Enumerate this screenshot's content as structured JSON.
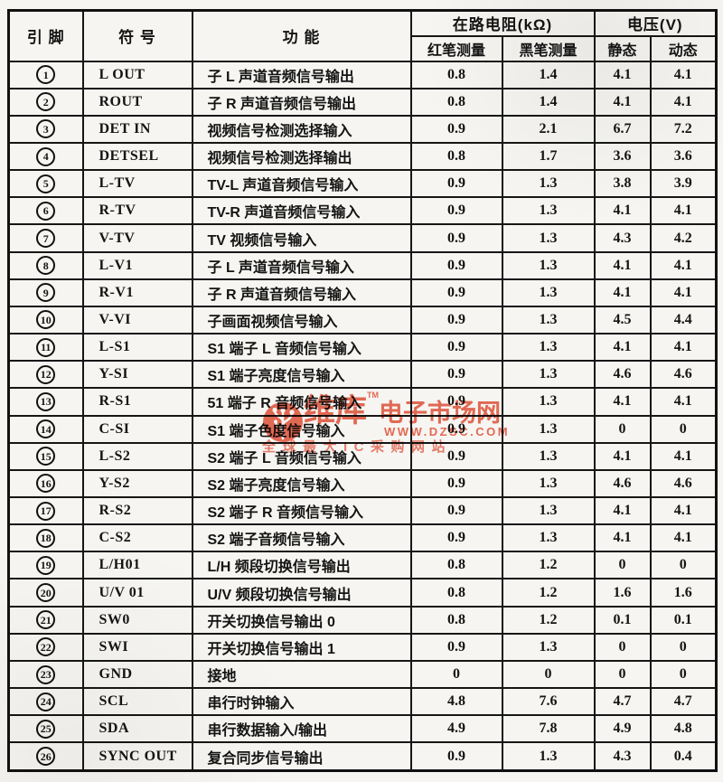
{
  "table": {
    "headers": {
      "pin": "引 脚",
      "symbol": "符 号",
      "function": "功 能",
      "resistance_group": "在路电阻(kΩ)",
      "voltage_group": "电压(V)",
      "red_pen": "红笔测量",
      "black_pen": "黑笔测量",
      "static": "静态",
      "dynamic": "动态"
    },
    "rows": [
      {
        "pin": "1",
        "symbol": "L OUT",
        "function": "子 L 声道音频信号输出",
        "red": "0.8",
        "black": "1.4",
        "static": "4.1",
        "dynamic": "4.1"
      },
      {
        "pin": "2",
        "symbol": "ROUT",
        "function": "子 R 声道音频信号输出",
        "red": "0.8",
        "black": "1.4",
        "static": "4.1",
        "dynamic": "4.1"
      },
      {
        "pin": "3",
        "symbol": "DET IN",
        "function": "视频信号检测选择输入",
        "red": "0.9",
        "black": "2.1",
        "static": "6.7",
        "dynamic": "7.2"
      },
      {
        "pin": "4",
        "symbol": "DETSEL",
        "function": "视频信号检测选择输出",
        "red": "0.8",
        "black": "1.7",
        "static": "3.6",
        "dynamic": "3.6"
      },
      {
        "pin": "5",
        "symbol": "L-TV",
        "function": "TV-L 声道音频信号输入",
        "red": "0.9",
        "black": "1.3",
        "static": "3.8",
        "dynamic": "3.9"
      },
      {
        "pin": "6",
        "symbol": "R-TV",
        "function": "TV-R 声道音频信号输入",
        "red": "0.9",
        "black": "1.3",
        "static": "4.1",
        "dynamic": "4.1"
      },
      {
        "pin": "7",
        "symbol": "V-TV",
        "function": "TV 视频信号输入",
        "red": "0.9",
        "black": "1.3",
        "static": "4.3",
        "dynamic": "4.2"
      },
      {
        "pin": "8",
        "symbol": "L-V1",
        "function": "子 L 声道音频信号输入",
        "red": "0.9",
        "black": "1.3",
        "static": "4.1",
        "dynamic": "4.1"
      },
      {
        "pin": "9",
        "symbol": "R-V1",
        "function": "子 R 声道音频信号输入",
        "red": "0.9",
        "black": "1.3",
        "static": "4.1",
        "dynamic": "4.1"
      },
      {
        "pin": "10",
        "symbol": "V-VI",
        "function": "子画面视频信号输入",
        "red": "0.9",
        "black": "1.3",
        "static": "4.5",
        "dynamic": "4.4"
      },
      {
        "pin": "11",
        "symbol": "L-S1",
        "function": "S1 端子 L 音频信号输入",
        "red": "0.9",
        "black": "1.3",
        "static": "4.1",
        "dynamic": "4.1"
      },
      {
        "pin": "12",
        "symbol": "Y-SI",
        "function": "S1 端子亮度信号输入",
        "red": "0.9",
        "black": "1.3",
        "static": "4.6",
        "dynamic": "4.6"
      },
      {
        "pin": "13",
        "symbol": "R-S1",
        "function": "51 端子 R 音频信号输入",
        "red": "0.9",
        "black": "1.3",
        "static": "4.1",
        "dynamic": "4.1"
      },
      {
        "pin": "14",
        "symbol": "C-SI",
        "function": "S1 端子色度信号输入",
        "red": "0.9",
        "black": "1.3",
        "static": "0",
        "dynamic": "0"
      },
      {
        "pin": "15",
        "symbol": "L-S2",
        "function": "S2 端子 L 音频信号输入",
        "red": "0.9",
        "black": "1.3",
        "static": "4.1",
        "dynamic": "4.1"
      },
      {
        "pin": "16",
        "symbol": "Y-S2",
        "function": "S2 端子亮度信号输入",
        "red": "0.9",
        "black": "1.3",
        "static": "4.6",
        "dynamic": "4.6"
      },
      {
        "pin": "17",
        "symbol": "R-S2",
        "function": "S2 端子 R 音频信号输入",
        "red": "0.9",
        "black": "1.3",
        "static": "4.1",
        "dynamic": "4.1"
      },
      {
        "pin": "18",
        "symbol": "C-S2",
        "function": "S2 端子音频信号输入",
        "red": "0.9",
        "black": "1.3",
        "static": "4.1",
        "dynamic": "4.1"
      },
      {
        "pin": "19",
        "symbol": "L/H01",
        "function": "L/H 频段切换信号输出",
        "red": "0.8",
        "black": "1.2",
        "static": "0",
        "dynamic": "0"
      },
      {
        "pin": "20",
        "symbol": "U/V 01",
        "function": "U/V 频段切换信号输出",
        "red": "0.8",
        "black": "1.2",
        "static": "1.6",
        "dynamic": "1.6"
      },
      {
        "pin": "21",
        "symbol": "SW0",
        "function": "开关切换信号输出 0",
        "red": "0.8",
        "black": "1.2",
        "static": "0.1",
        "dynamic": "0.1"
      },
      {
        "pin": "22",
        "symbol": "SWI",
        "function": "开关切换信号输出 1",
        "red": "0.9",
        "black": "1.3",
        "static": "0",
        "dynamic": "0"
      },
      {
        "pin": "23",
        "symbol": "GND",
        "function": "接地",
        "red": "0",
        "black": "0",
        "static": "0",
        "dynamic": "0"
      },
      {
        "pin": "24",
        "symbol": "SCL",
        "function": "串行时钟输入",
        "red": "4.8",
        "black": "7.6",
        "static": "4.7",
        "dynamic": "4.7"
      },
      {
        "pin": "25",
        "symbol": "SDA",
        "function": "串行数据输入/输出",
        "red": "4.9",
        "black": "7.8",
        "static": "4.9",
        "dynamic": "4.8"
      },
      {
        "pin": "26",
        "symbol": "SYNC OUT",
        "function": "复合同步信号输出",
        "red": "0.9",
        "black": "1.3",
        "static": "4.3",
        "dynamic": "0.4"
      }
    ]
  },
  "watermark": {
    "brand_big": "维库",
    "tm": "TM",
    "brand_rest": "电子市场网",
    "url": "WWW.DZSC.COM",
    "slogan": "全球最大IC采购网站",
    "color": "#e8604a"
  }
}
